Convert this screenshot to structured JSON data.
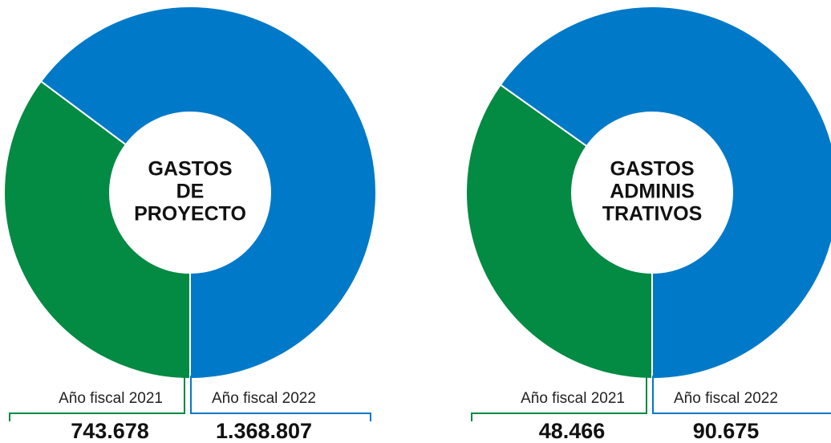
{
  "chart_data": [
    {
      "type": "pie",
      "title_lines": [
        "GASTOS",
        "DE",
        "PROYECTO"
      ],
      "categories": [
        "Año fiscal 2021",
        "Año fiscal 2022"
      ],
      "values": [
        743678,
        1368807
      ],
      "value_labels": [
        "743.678",
        "1.368.807"
      ],
      "colors": [
        "#038a43",
        "#0079c8"
      ]
    },
    {
      "type": "pie",
      "title_lines": [
        "GASTOS",
        "ADMINIS",
        "TRATIVOS"
      ],
      "categories": [
        "Año fiscal 2021",
        "Año fiscal 2022"
      ],
      "values": [
        48466,
        90675
      ],
      "value_labels": [
        "48.466",
        "90.675"
      ],
      "colors": [
        "#038a43",
        "#0079c8"
      ]
    }
  ]
}
